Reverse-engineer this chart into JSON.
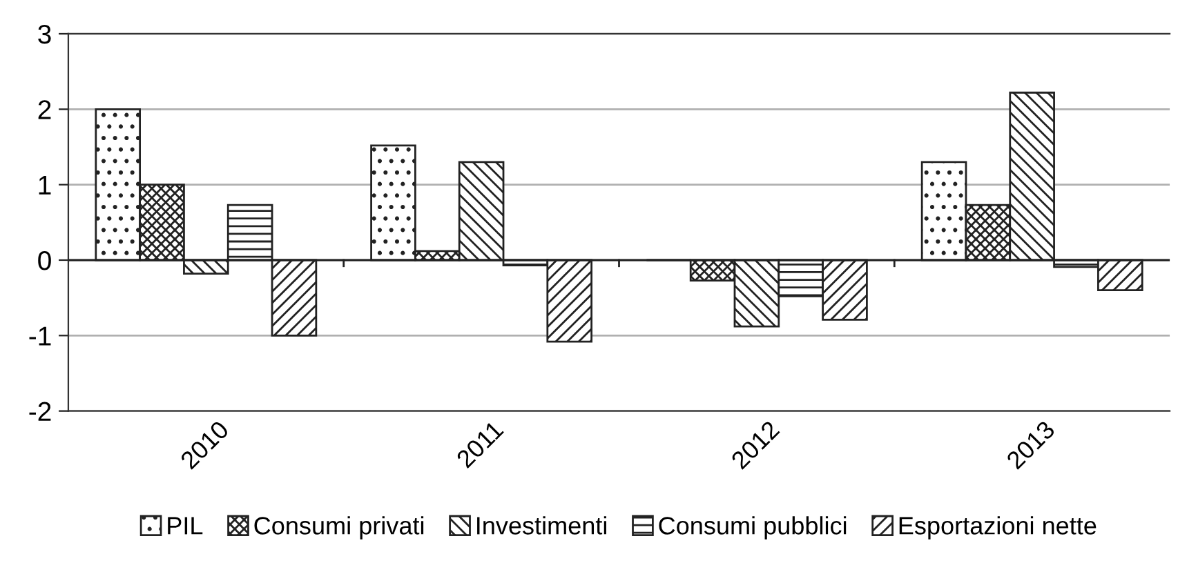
{
  "chart_data": {
    "type": "bar",
    "categories": [
      "2010",
      "2011",
      "2012",
      "2013"
    ],
    "series": [
      {
        "name": "PIL",
        "color": "#222222",
        "values": [
          2.0,
          1.52,
          0,
          1.3
        ]
      },
      {
        "name": "Consumi privati",
        "color": "#222222",
        "values": [
          1.0,
          0.12,
          -0.27,
          0.73
        ]
      },
      {
        "name": "Investimenti",
        "color": "#222222",
        "values": [
          -0.18,
          1.3,
          -0.88,
          2.22
        ]
      },
      {
        "name": "Consumi pubblici",
        "color": "#222222",
        "values": [
          0.73,
          -0.07,
          -0.48,
          -0.09
        ]
      },
      {
        "name": "Esportazioni nette",
        "color": "#222222",
        "values": [
          -1.0,
          -1.08,
          -0.79,
          -0.4
        ]
      }
    ],
    "ylim": [
      -2,
      3
    ],
    "yticks": [
      -2,
      -1,
      0,
      1,
      2,
      3
    ],
    "grid": "y",
    "legend": "bottom"
  }
}
